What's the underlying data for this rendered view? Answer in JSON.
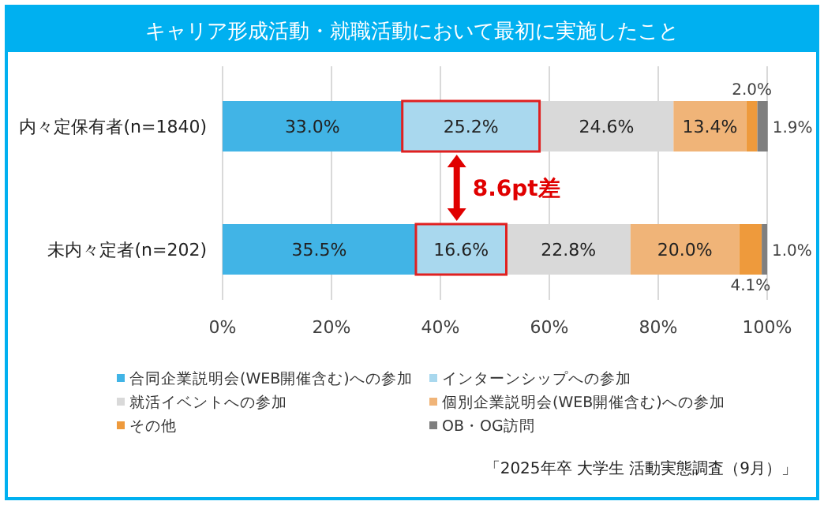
{
  "chart_data": {
    "type": "bar",
    "orientation": "horizontal",
    "stacked": true,
    "title": "キャリア形成活動・就職活動において最初に実施したこと",
    "categories": [
      "内々定保有者(n=1840)",
      "未内々定者(n=202)"
    ],
    "series": [
      {
        "name": "合同企業説明会(WEB開催含む)への参加",
        "color": "#41b4e6",
        "values": [
          33.0,
          35.5
        ],
        "value_labels": [
          "33.0%",
          "35.5%"
        ]
      },
      {
        "name": "インターンシップへの参加",
        "color": "#a9d8ee",
        "values": [
          25.2,
          16.6
        ],
        "value_labels": [
          "25.2%",
          "16.6%"
        ]
      },
      {
        "name": "就活イベントへの参加",
        "color": "#d9d9d9",
        "values": [
          24.6,
          22.8
        ],
        "value_labels": [
          "24.6%",
          "22.8%"
        ]
      },
      {
        "name": "個別企業説明会(WEB開催含む)への参加",
        "color": "#f0b478",
        "values": [
          13.4,
          20.0
        ],
        "value_labels": [
          "13.4%",
          "20.0%"
        ]
      },
      {
        "name": "その他",
        "color": "#ee9a3c",
        "values": [
          2.0,
          4.1
        ],
        "value_labels": [
          "2.0%",
          "4.1%"
        ]
      },
      {
        "name": "OB・OG訪問",
        "color": "#7f7f7f",
        "values": [
          1.9,
          1.0
        ],
        "value_labels": [
          "1.9%",
          "1.0%"
        ]
      }
    ],
    "xlim": [
      0,
      100
    ],
    "xticks": [
      {
        "value": 0,
        "label": "0%"
      },
      {
        "value": 20,
        "label": "20%"
      },
      {
        "value": 40,
        "label": "40%"
      },
      {
        "value": 60,
        "label": "60%"
      },
      {
        "value": 80,
        "label": "80%"
      },
      {
        "value": 100,
        "label": "100%"
      }
    ],
    "grid": "x",
    "legend": "bottom",
    "annotations": [
      "8.6pt差",
      "「2025年卒 大学生 活動実態調査（9月）」"
    ]
  }
}
